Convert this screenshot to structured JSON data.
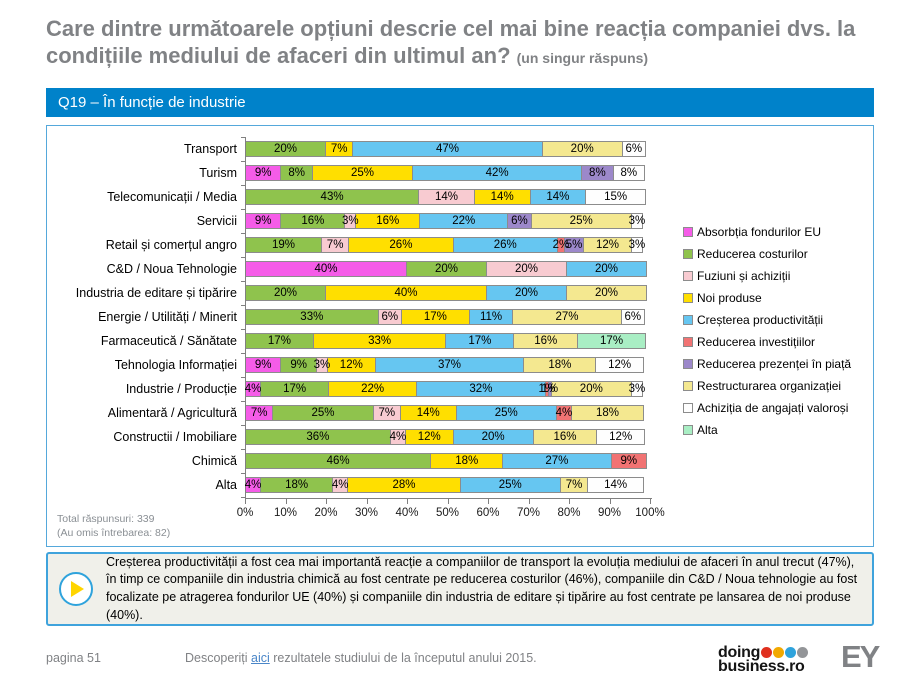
{
  "page": {
    "title": "Care dintre următoarele opțiuni descrie cel mai bine reacția companiei dvs. la condițiile mediului de afaceri din ultimul an?",
    "title_suffix": "(un singur răspuns)",
    "section_header": "Q19 – În funcție de industrie"
  },
  "chart_data": {
    "type": "bar",
    "orientation": "horizontal-stacked",
    "xlim": [
      0,
      100
    ],
    "value_suffix": "%",
    "grid": false,
    "legend_position": "right",
    "x_ticks": [
      "0%",
      "10%",
      "20%",
      "30%",
      "40%",
      "50%",
      "60%",
      "70%",
      "80%",
      "90%",
      "100%"
    ],
    "categories": [
      "Transport",
      "Turism",
      "Telecomunicații / Media",
      "Servicii",
      "Retail și comerțul angro",
      "C&D / Noua Tehnologie",
      "Industria de editare și tipărire",
      "Energie / Utilități / Minerit",
      "Farmaceutică / Sănătate",
      "Tehnologia Informației",
      "Industrie / Producție",
      "Alimentară / Agricultură",
      "Constructii / Imobiliare",
      "Chimică",
      "Alta"
    ],
    "series": [
      {
        "name": "Absorbția fondurilor EU",
        "color": "#F55CE8",
        "values": [
          0,
          9,
          0,
          9,
          0,
          40,
          0,
          0,
          0,
          9,
          4,
          7,
          0,
          0,
          4
        ]
      },
      {
        "name": "Reducerea costurilor",
        "color": "#8FC34D",
        "values": [
          20,
          8,
          43,
          16,
          19,
          20,
          20,
          33,
          17,
          9,
          17,
          25,
          36,
          46,
          18
        ]
      },
      {
        "name": "Fuziuni și achiziții",
        "color": "#F8CBD1",
        "values": [
          0,
          0,
          14,
          3,
          7,
          20,
          0,
          6,
          0,
          3,
          0,
          7,
          4,
          0,
          4
        ]
      },
      {
        "name": "Noi produse",
        "color": "#FFDF00",
        "values": [
          7,
          25,
          14,
          16,
          26,
          0,
          40,
          17,
          33,
          12,
          22,
          14,
          12,
          18,
          28
        ]
      },
      {
        "name": "Creșterea productivității",
        "color": "#66C6F1",
        "values": [
          47,
          42,
          14,
          22,
          26,
          20,
          20,
          11,
          17,
          37,
          32,
          25,
          20,
          27,
          25
        ]
      },
      {
        "name": "Reducerea investițiilor",
        "color": "#F17373",
        "values": [
          0,
          0,
          0,
          0,
          2,
          0,
          0,
          0,
          0,
          0,
          1,
          4,
          0,
          9,
          0
        ]
      },
      {
        "name": "Reducerea prezenței în piață",
        "color": "#9C88CA",
        "values": [
          0,
          8,
          0,
          6,
          5,
          0,
          0,
          0,
          0,
          0,
          1,
          0,
          0,
          0,
          0
        ]
      },
      {
        "name": "Restructurarea organizației",
        "color": "#F4E890",
        "values": [
          20,
          0,
          0,
          25,
          12,
          0,
          20,
          27,
          16,
          18,
          20,
          18,
          16,
          0,
          7
        ]
      },
      {
        "name": "Achiziția de angajați valoroși",
        "color": "#FEFEFE",
        "values": [
          6,
          8,
          15,
          3,
          3,
          0,
          0,
          6,
          0,
          12,
          3,
          0,
          12,
          0,
          14
        ]
      },
      {
        "name": "Alta",
        "color": "#A9EEC4",
        "values": [
          0,
          0,
          0,
          0,
          0,
          0,
          0,
          0,
          17,
          0,
          0,
          0,
          0,
          0,
          0
        ]
      }
    ]
  },
  "chart_notes": {
    "total_label": "Total răspunsuri: 339",
    "omitted_label": "(Au omis întrebarea: 82)"
  },
  "summary": {
    "text": "Creșterea productivității a fost cea mai importantă reacție a companiilor de transport la evoluția mediului de afaceri în anul trecut (47%), în timp ce companiile din industria chimică au fost centrate pe reducerea costurilor (46%), companiile din C&D / Noua tehnologie au fost focalizate pe atragerea fondurilor UE (40%) și companiile din industria de editare și tipărire au fost centrate pe lansarea de noi produse (40%)."
  },
  "footer": {
    "page_label": "pagina 51",
    "link_pre": "Descoperiți ",
    "link_text": "aici",
    "link_post": " rezultatele studiului de la începutul anului 2015.",
    "logo_doing_line1": "doing",
    "logo_doing_line2": "business.ro",
    "logo_dot_colors": [
      "#E0301E",
      "#F2A900",
      "#2FA3DC",
      "#939598"
    ],
    "logo_ey": "EY"
  }
}
